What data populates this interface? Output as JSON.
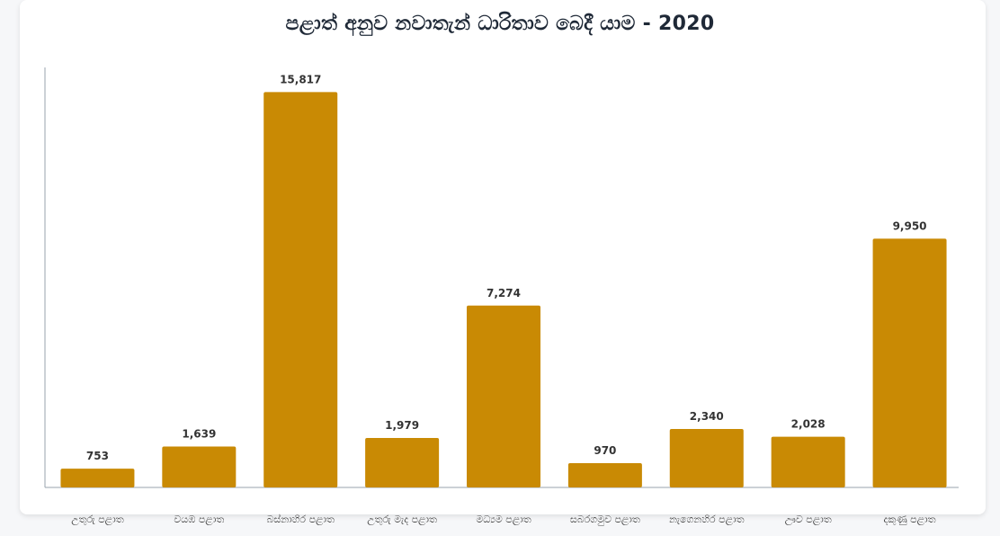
{
  "chart_data": {
    "type": "bar",
    "title": "පළාත් අනුව නවාතැන් ධාරිතාව බෙදී යාම - 2020",
    "xlabel": "",
    "ylabel": "",
    "categories": [
      "උතුරු පළාත",
      "වයඹ පළාත",
      "බස්නාහිර පළාත",
      "උතුරු මැද පළාත",
      "මධ්‍යම පළාත",
      "සබරගමුව පළාත",
      "නැගෙනහිර පළාත",
      "ඌව පළාත",
      "දකුණු පළාත"
    ],
    "values": [
      753,
      1639,
      15817,
      1979,
      7274,
      970,
      2340,
      2028,
      9950
    ],
    "value_labels": [
      "753",
      "1,639",
      "15,817",
      "1,979",
      "7,274",
      "970",
      "2,340",
      "2,028",
      "9,950"
    ],
    "ylim": [
      0,
      16800
    ],
    "grid": false,
    "legend": "none",
    "bar_color": "#c98a04"
  }
}
